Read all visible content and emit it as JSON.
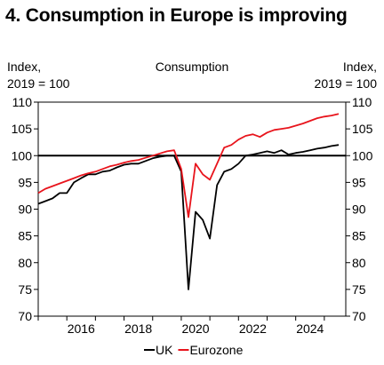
{
  "title": "4. Consumption in Europe is improving",
  "chart_data": {
    "type": "line",
    "subtitle": "Consumption",
    "ylabel_left": [
      "Index,",
      "2019 = 100"
    ],
    "ylabel_right": [
      "Index,",
      "2019 = 100"
    ],
    "ylim": [
      70,
      110
    ],
    "yticks": [
      70,
      75,
      80,
      85,
      90,
      95,
      100,
      105,
      110
    ],
    "xlim": [
      2015.0,
      2025.75
    ],
    "xticks": [
      2016,
      2018,
      2020,
      2022,
      2024
    ],
    "reference_line": 100,
    "grid": false,
    "legend_position": "bottom-center",
    "series": [
      {
        "name": "UK",
        "color": "#000000",
        "x": [
          2015.0,
          2015.25,
          2015.5,
          2015.75,
          2016.0,
          2016.25,
          2016.5,
          2016.75,
          2017.0,
          2017.25,
          2017.5,
          2017.75,
          2018.0,
          2018.25,
          2018.5,
          2018.75,
          2019.0,
          2019.25,
          2019.5,
          2019.75,
          2020.0,
          2020.25,
          2020.5,
          2020.75,
          2021.0,
          2021.25,
          2021.5,
          2021.75,
          2022.0,
          2022.25,
          2022.5,
          2022.75,
          2023.0,
          2023.25,
          2023.5,
          2023.75,
          2024.0,
          2024.25,
          2024.5,
          2024.75,
          2025.0,
          2025.25,
          2025.5
        ],
        "values": [
          91.0,
          91.5,
          92.0,
          93.0,
          93.0,
          95.0,
          95.8,
          96.5,
          96.5,
          97.0,
          97.2,
          97.8,
          98.3,
          98.5,
          98.5,
          99.0,
          99.5,
          99.8,
          100.0,
          100.0,
          97.0,
          75.0,
          89.5,
          88.0,
          84.5,
          94.5,
          97.0,
          97.5,
          98.5,
          100.0,
          100.2,
          100.5,
          100.8,
          100.5,
          101.0,
          100.2,
          100.5,
          100.7,
          101.0,
          101.3,
          101.5,
          101.8,
          102.0
        ]
      },
      {
        "name": "Eurozone",
        "color": "#e8141c",
        "x": [
          2015.0,
          2015.25,
          2015.5,
          2015.75,
          2016.0,
          2016.25,
          2016.5,
          2016.75,
          2017.0,
          2017.25,
          2017.5,
          2017.75,
          2018.0,
          2018.25,
          2018.5,
          2018.75,
          2019.0,
          2019.25,
          2019.5,
          2019.75,
          2020.0,
          2020.25,
          2020.5,
          2020.75,
          2021.0,
          2021.25,
          2021.5,
          2021.75,
          2022.0,
          2022.25,
          2022.5,
          2022.75,
          2023.0,
          2023.25,
          2023.5,
          2023.75,
          2024.0,
          2024.25,
          2024.5,
          2024.75,
          2025.0,
          2025.25,
          2025.5
        ],
        "values": [
          93.0,
          93.8,
          94.3,
          94.8,
          95.3,
          95.8,
          96.3,
          96.7,
          97.0,
          97.5,
          98.0,
          98.3,
          98.7,
          99.0,
          99.2,
          99.6,
          100.0,
          100.4,
          100.8,
          101.0,
          97.5,
          88.5,
          98.5,
          96.5,
          95.5,
          98.5,
          101.5,
          102.0,
          103.0,
          103.7,
          104.0,
          103.5,
          104.3,
          104.8,
          105.0,
          105.2,
          105.6,
          106.0,
          106.5,
          107.0,
          107.3,
          107.5,
          107.8
        ]
      }
    ]
  }
}
